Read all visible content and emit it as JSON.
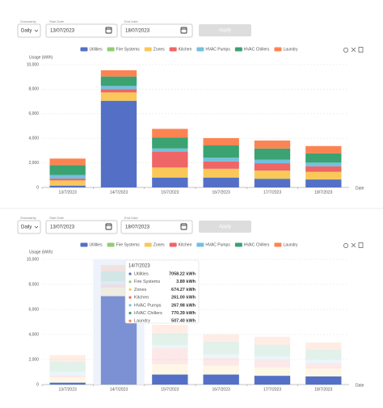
{
  "controls": [
    {
      "granularity_label": "Granularity",
      "granularity": "Daily",
      "start_label": "Start Date",
      "start": "13/07/2023",
      "end_label": "End Date",
      "end": "18/07/2023",
      "apply": "Apply"
    },
    {
      "granularity_label": "Granularity",
      "granularity": "Daily",
      "start_label": "Start Date",
      "start": "13/07/2023",
      "end_label": "End Date",
      "end": "18/07/2023",
      "apply": "Apply"
    }
  ],
  "chart_data": [
    {
      "type": "stacked-bar",
      "y_label": "Usage (kWh)",
      "x_label": "Date",
      "categories": [
        "13/7/2023",
        "14/7/2023",
        "15/7/2023",
        "16/7/2023",
        "17/7/2023",
        "18/7/2023"
      ],
      "series": [
        {
          "name": "Utilities",
          "color": "#5470c6",
          "values": [
            150,
            7058.22,
            800,
            800,
            700,
            650
          ]
        },
        {
          "name": "Fire Systems",
          "color": "#91cc75",
          "values": [
            20,
            3.89,
            20,
            20,
            20,
            20
          ]
        },
        {
          "name": "Zones",
          "color": "#fac858",
          "values": [
            400,
            674.27,
            800,
            700,
            650,
            600
          ]
        },
        {
          "name": "Kitchen",
          "color": "#ee6666",
          "values": [
            150,
            261.0,
            1300,
            600,
            600,
            450
          ]
        },
        {
          "name": "HVAC Pumps",
          "color": "#73c0de",
          "values": [
            300,
            267.98,
            250,
            300,
            300,
            300
          ]
        },
        {
          "name": "HVAC Chillers",
          "color": "#3ba272",
          "values": [
            800,
            770.39,
            900,
            1000,
            900,
            750
          ]
        },
        {
          "name": "Laundry",
          "color": "#fc8452",
          "values": [
            530,
            507.4,
            700,
            600,
            650,
            600
          ]
        }
      ],
      "ylim": [
        0,
        10000
      ],
      "yticks": [
        0,
        {
          "value": 2000,
          "label": "2,000"
        },
        {
          "value": 4000,
          "label": "4,000"
        },
        {
          "value": 6000,
          "label": "6,000"
        },
        {
          "value": 8000,
          "label": "8,000"
        },
        {
          "value": 10000,
          "label": "10,000"
        }
      ],
      "grid": true,
      "legend": "top"
    },
    {
      "type": "stacked-bar",
      "y_label": "Usage (kWh)",
      "x_label": "Date",
      "categories": [
        "13/7/2023",
        "14/7/2023",
        "15/7/2023",
        "16/7/2023",
        "17/7/2023",
        "18/7/2023"
      ],
      "series": [
        {
          "name": "Utilities",
          "color": "#5470c6",
          "values": [
            150,
            7058.22,
            800,
            800,
            700,
            650
          ]
        },
        {
          "name": "Fire Systems",
          "color": "#91cc75",
          "values": [
            20,
            3.89,
            20,
            20,
            20,
            20
          ]
        },
        {
          "name": "Zones",
          "color": "#fac858",
          "values": [
            400,
            674.27,
            800,
            700,
            650,
            600
          ]
        },
        {
          "name": "Kitchen",
          "color": "#ee6666",
          "values": [
            150,
            261.0,
            1300,
            600,
            600,
            450
          ]
        },
        {
          "name": "HVAC Pumps",
          "color": "#73c0de",
          "values": [
            300,
            267.98,
            250,
            300,
            300,
            300
          ]
        },
        {
          "name": "HVAC Chillers",
          "color": "#3ba272",
          "values": [
            800,
            770.39,
            900,
            1000,
            900,
            750
          ]
        },
        {
          "name": "Laundry",
          "color": "#fc8452",
          "values": [
            530,
            507.4,
            700,
            600,
            650,
            600
          ]
        }
      ],
      "ylim": [
        0,
        10000
      ],
      "yticks": [
        0,
        {
          "value": 2000,
          "label": "2,000"
        },
        {
          "value": 4000,
          "label": "4,000"
        },
        {
          "value": 6000,
          "label": "6,000"
        },
        {
          "value": 8000,
          "label": "8,000"
        },
        {
          "value": 10000,
          "label": "10,000"
        }
      ],
      "grid": true,
      "legend": "top",
      "tooltip": {
        "category": "14/7/2023",
        "value_labels": [
          "7058.22 kWh",
          "3.89 kWh",
          "674.27 kWh",
          "261.00 kWh",
          "267.98 kWh",
          "770.39 kWh",
          "507.40 kWh"
        ]
      }
    }
  ]
}
